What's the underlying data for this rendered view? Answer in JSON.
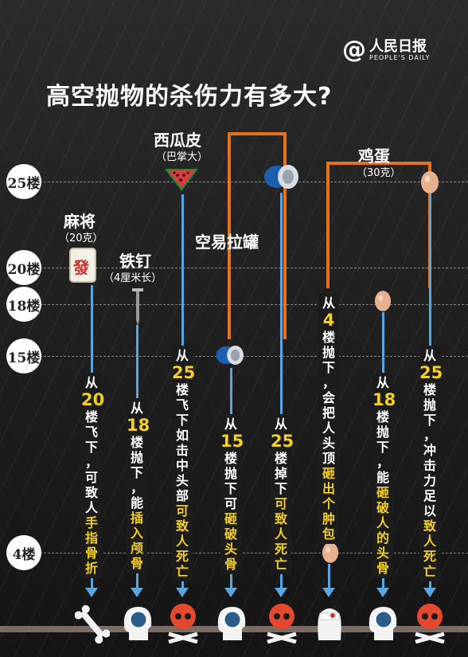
{
  "brand": {
    "at": "@",
    "name_cn": "人民日报",
    "name_en": "PEOPLE'S DAILY"
  },
  "title": "高空抛物的杀伤力有多大?",
  "floors": [
    "25楼",
    "20楼",
    "18楼",
    "15楼",
    "4楼"
  ],
  "objects": {
    "watermelon": {
      "name": "西瓜皮",
      "note": "（巴掌大）"
    },
    "can": {
      "name": "空易拉罐"
    },
    "egg": {
      "name": "鸡蛋",
      "note": "（30克）"
    },
    "mahjong": {
      "name": "麻将",
      "note": "（20克）"
    },
    "nail": {
      "name": "铁钉",
      "note": "（4厘米长）"
    }
  },
  "columns": [
    {
      "id": "mahjong",
      "from": "从",
      "num": "20",
      "rest": "楼飞下，可致人",
      "hl": "手指骨折"
    },
    {
      "id": "nail",
      "from": "从",
      "num": "18",
      "rest": "楼抛下，能",
      "hl": "插入颅骨"
    },
    {
      "id": "watermelon",
      "from": "从",
      "num": "25",
      "rest": "楼飞下如击中头部",
      "hl": "可致人死亡"
    },
    {
      "id": "can15",
      "from": "从",
      "num": "15",
      "rest": "楼抛下可",
      "hl": "砸破头骨"
    },
    {
      "id": "can25",
      "from": "从",
      "num": "25",
      "rest": "楼掉下",
      "hl": "可致人死亡"
    },
    {
      "id": "egg4",
      "from": "从",
      "num": "4",
      "rest": "楼抛下，会把人头顶",
      "hl": "砸出个肿包"
    },
    {
      "id": "egg18",
      "from": "从",
      "num": "18",
      "rest": "楼抛下，能",
      "hl": "砸破人的头骨"
    },
    {
      "id": "egg25",
      "from": "从",
      "num": "25",
      "rest": "楼抛下，冲击力足以",
      "hl": "致人死亡"
    }
  ],
  "mahjong_tile_text": "發",
  "colors": {
    "arrow": "#5aa6e0",
    "highlight": "#f5d020",
    "bracket": "#e8721c"
  },
  "bottom_icons": [
    "bone-icon",
    "skull-xray-icon",
    "skull-crossbones-icon",
    "skull-xray-icon",
    "skull-crossbones-icon",
    "injured-head-icon",
    "skull-xray-icon",
    "skull-crossbones-icon"
  ]
}
